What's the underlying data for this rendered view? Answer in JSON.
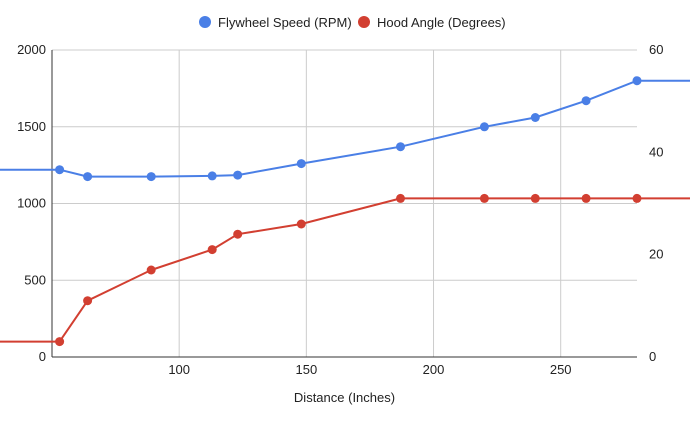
{
  "chart_data": {
    "type": "line",
    "title": "",
    "xlabel": "Distance (Inches)",
    "ylabel_left": "",
    "ylabel_right": "",
    "xlim": [
      50,
      280
    ],
    "x_ticks": [
      100,
      150,
      200,
      250
    ],
    "ylim_left": [
      0,
      2000
    ],
    "y_ticks_left": [
      0,
      500,
      1000,
      1500,
      2000
    ],
    "ylim_right": [
      0,
      60
    ],
    "y_ticks_right": [
      0,
      20,
      40,
      60
    ],
    "grid": true,
    "legend_position": "top",
    "series": [
      {
        "name": "Flywheel Speed (RPM)",
        "axis": "left",
        "color": "#4a7fe6",
        "x": [
          53,
          64,
          89,
          113,
          123,
          148,
          187,
          220,
          240,
          260,
          280
        ],
        "y": [
          1220,
          1175,
          1175,
          1180,
          1185,
          1260,
          1370,
          1500,
          1560,
          1670,
          1800
        ],
        "extend_left": 1220,
        "extend_right": 1800
      },
      {
        "name": "Hood Angle (Degrees)",
        "axis": "right",
        "color": "#d23f31",
        "x": [
          53,
          64,
          89,
          113,
          123,
          148,
          187,
          220,
          240,
          260,
          280
        ],
        "y": [
          3,
          11,
          17,
          21,
          24,
          26,
          31,
          31,
          31,
          31,
          31
        ],
        "extend_left": 3,
        "extend_right": 31
      }
    ]
  }
}
